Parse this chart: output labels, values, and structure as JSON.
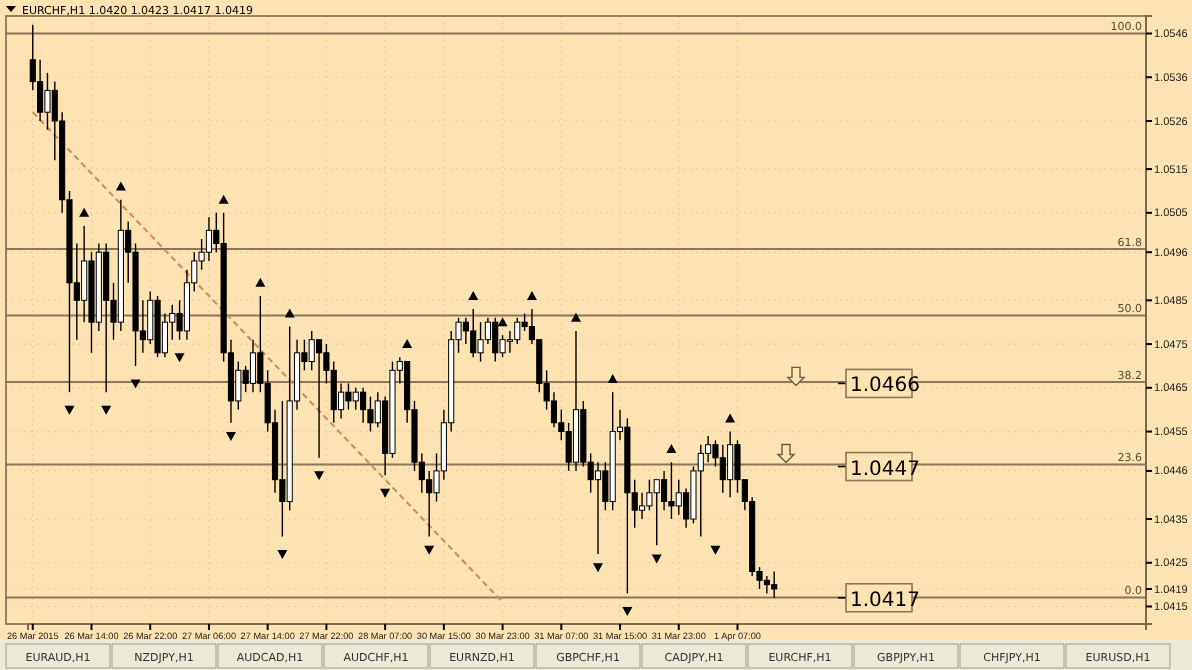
{
  "chart_data": {
    "type": "candlestick",
    "title": "EURCHF,H1 1.0420 1.0423 1.0417 1.0419",
    "categories": [
      "26 Mar 2015",
      null,
      null,
      null,
      null,
      null,
      null,
      null,
      "26 Mar 14:00",
      null,
      null,
      null,
      null,
      null,
      null,
      null,
      "26 Mar 22:00",
      null,
      null,
      null,
      null,
      null,
      null,
      null,
      "27 Mar 06:00",
      null,
      null,
      null,
      null,
      null,
      null,
      null,
      "27 Mar 14:00",
      null,
      null,
      null,
      null,
      null,
      null,
      null,
      "27 Mar 22:00",
      null,
      null,
      null,
      null,
      null,
      null,
      null,
      "28 Mar 07:00",
      null,
      null,
      null,
      null,
      null,
      null,
      null,
      "30 Mar 15:00",
      null,
      null,
      null,
      null,
      null,
      null,
      null,
      "30 Mar 23:00",
      null,
      null,
      null,
      null,
      null,
      null,
      null,
      "31 Mar 07:00",
      null,
      null,
      null,
      null,
      null,
      null,
      null,
      "31 Mar 15:00",
      null,
      null,
      null,
      null,
      null,
      null,
      null,
      "31 Mar 23:00",
      null,
      null,
      null,
      null,
      null,
      null,
      null,
      "1 Apr 07:00",
      null,
      null,
      null,
      null,
      null,
      null,
      null,
      null,
      null,
      null,
      null,
      null,
      null,
      null,
      null,
      null,
      null,
      null,
      null,
      null,
      null,
      null,
      null,
      null,
      null,
      null,
      null,
      null,
      null,
      null,
      null,
      null,
      null,
      null,
      null,
      null,
      null,
      null,
      null,
      null,
      null,
      null,
      null,
      null,
      null,
      null,
      null,
      null,
      null,
      null,
      null,
      null,
      null,
      null,
      null
    ],
    "ohlc": [
      [
        1.054,
        1.0548,
        1.0533,
        1.0535
      ],
      [
        1.0535,
        1.054,
        1.0526,
        1.0528
      ],
      [
        1.0528,
        1.0537,
        1.0524,
        1.0533
      ],
      [
        1.0533,
        1.0535,
        1.0517,
        1.0526
      ],
      [
        1.0526,
        1.0528,
        1.0505,
        1.0508
      ],
      [
        1.0508,
        1.051,
        1.0464,
        1.0489
      ],
      [
        1.0489,
        1.0498,
        1.0476,
        1.0485
      ],
      [
        1.0485,
        1.0502,
        1.048,
        1.0494
      ],
      [
        1.0494,
        1.0496,
        1.0473,
        1.048
      ],
      [
        1.048,
        1.0498,
        1.0478,
        1.0496
      ],
      [
        1.0496,
        1.0498,
        1.0464,
        1.0485
      ],
      [
        1.0485,
        1.0489,
        1.0476,
        1.048
      ],
      [
        1.048,
        1.0508,
        1.0478,
        1.0501
      ],
      [
        1.0501,
        1.0503,
        1.0489,
        1.0496
      ],
      [
        1.0496,
        1.0498,
        1.047,
        1.0478
      ],
      [
        1.0478,
        1.0485,
        1.0473,
        1.0476
      ],
      [
        1.0476,
        1.0487,
        1.0475,
        1.0485
      ],
      [
        1.0485,
        1.0486,
        1.0472,
        1.0473
      ],
      [
        1.0473,
        1.0482,
        1.0472,
        1.048
      ],
      [
        1.048,
        1.0484,
        1.0476,
        1.0482
      ],
      [
        1.0482,
        1.0485,
        1.0476,
        1.0478
      ],
      [
        1.0478,
        1.0492,
        1.0476,
        1.0489
      ],
      [
        1.0489,
        1.0496,
        1.0487,
        1.0494
      ],
      [
        1.0494,
        1.0499,
        1.0492,
        1.0496
      ],
      [
        1.0496,
        1.0504,
        1.0494,
        1.0501
      ],
      [
        1.0501,
        1.0505,
        1.0496,
        1.0498
      ],
      [
        1.0498,
        1.0505,
        1.0471,
        1.0473
      ],
      [
        1.0473,
        1.0476,
        1.0457,
        1.0462
      ],
      [
        1.0462,
        1.0471,
        1.046,
        1.0469
      ],
      [
        1.0469,
        1.047,
        1.0464,
        1.0466
      ],
      [
        1.0466,
        1.0476,
        1.0464,
        1.0473
      ],
      [
        1.0473,
        1.0486,
        1.0464,
        1.0466
      ],
      [
        1.0466,
        1.0469,
        1.0455,
        1.0457
      ],
      [
        1.0457,
        1.046,
        1.0441,
        1.0444
      ],
      [
        1.0444,
        1.0462,
        1.0431,
        1.0439
      ],
      [
        1.0439,
        1.0479,
        1.0437,
        1.0462
      ],
      [
        1.0462,
        1.0476,
        1.046,
        1.0473
      ],
      [
        1.0473,
        1.0476,
        1.0469,
        1.0471
      ],
      [
        1.0471,
        1.0478,
        1.0469,
        1.0476
      ],
      [
        1.0476,
        1.0476,
        1.0449,
        1.0473
      ],
      [
        1.0473,
        1.0475,
        1.0466,
        1.0469
      ],
      [
        1.0469,
        1.0471,
        1.0457,
        1.046
      ],
      [
        1.046,
        1.0466,
        1.0458,
        1.0464
      ],
      [
        1.0464,
        1.0466,
        1.046,
        1.0462
      ],
      [
        1.0462,
        1.0465,
        1.046,
        1.0464
      ],
      [
        1.0464,
        1.0465,
        1.0457,
        1.046
      ],
      [
        1.046,
        1.0463,
        1.0455,
        1.0457
      ],
      [
        1.0457,
        1.0464,
        1.0456,
        1.0462
      ],
      [
        1.0462,
        1.0463,
        1.0445,
        1.045
      ],
      [
        1.045,
        1.0471,
        1.0449,
        1.0469
      ],
      [
        1.0469,
        1.0472,
        1.0466,
        1.0471
      ],
      [
        1.0471,
        1.0471,
        1.0457,
        1.046
      ],
      [
        1.046,
        1.0462,
        1.0446,
        1.0448
      ],
      [
        1.0448,
        1.045,
        1.0441,
        1.0444
      ],
      [
        1.0444,
        1.0446,
        1.0431,
        1.0441
      ],
      [
        1.0441,
        1.045,
        1.0439,
        1.0446
      ],
      [
        1.0446,
        1.046,
        1.0444,
        1.0457
      ],
      [
        1.0457,
        1.0478,
        1.0455,
        1.0476
      ],
      [
        1.0476,
        1.0481,
        1.0473,
        1.048
      ],
      [
        1.048,
        1.0481,
        1.0475,
        1.0478
      ],
      [
        1.0478,
        1.0483,
        1.0472,
        1.0473
      ],
      [
        1.0473,
        1.048,
        1.0471,
        1.0476
      ],
      [
        1.0476,
        1.0481,
        1.0475,
        1.048
      ],
      [
        1.048,
        1.0481,
        1.0471,
        1.0473
      ],
      [
        1.0473,
        1.0477,
        1.0472,
        1.0476
      ],
      [
        1.0476,
        1.0478,
        1.0473,
        1.0476
      ],
      [
        1.0476,
        1.0481,
        1.0475,
        1.048
      ],
      [
        1.048,
        1.0482,
        1.0478,
        1.0479
      ],
      [
        1.0479,
        1.0483,
        1.0475,
        1.0476
      ],
      [
        1.0476,
        1.0476,
        1.0464,
        1.0466
      ],
      [
        1.0466,
        1.0469,
        1.046,
        1.0462
      ],
      [
        1.0462,
        1.0464,
        1.0456,
        1.0457
      ],
      [
        1.0457,
        1.046,
        1.0453,
        1.0455
      ],
      [
        1.0455,
        1.0457,
        1.0446,
        1.0448
      ],
      [
        1.0448,
        1.0478,
        1.0446,
        1.046
      ],
      [
        1.046,
        1.0462,
        1.0447,
        1.0448
      ],
      [
        1.0448,
        1.045,
        1.0441,
        1.0444
      ],
      [
        1.0444,
        1.0448,
        1.0427,
        1.0446
      ],
      [
        1.0446,
        1.0448,
        1.0437,
        1.0439
      ],
      [
        1.0439,
        1.0464,
        1.0437,
        1.0455
      ],
      [
        1.0455,
        1.046,
        1.0453,
        1.0456
      ],
      [
        1.0456,
        1.0458,
        1.0418,
        1.0441
      ],
      [
        1.0441,
        1.0444,
        1.0433,
        1.0437
      ],
      [
        1.0437,
        1.0441,
        1.0435,
        1.0438
      ],
      [
        1.0438,
        1.0444,
        1.0437,
        1.0441
      ],
      [
        1.0441,
        1.0444,
        1.0429,
        1.0444
      ],
      [
        1.0444,
        1.0446,
        1.0437,
        1.0439
      ],
      [
        1.0439,
        1.0448,
        1.0435,
        1.0438
      ],
      [
        1.0438,
        1.0444,
        1.0436,
        1.0441
      ],
      [
        1.0441,
        1.0442,
        1.0433,
        1.0435
      ],
      [
        1.0435,
        1.0447,
        1.0434,
        1.0446
      ],
      [
        1.0446,
        1.0452,
        1.0431,
        1.045
      ],
      [
        1.045,
        1.0454,
        1.0448,
        1.0452
      ],
      [
        1.0452,
        1.0453,
        1.0447,
        1.0449
      ],
      [
        1.0449,
        1.0452,
        1.0441,
        1.0444
      ],
      [
        1.0444,
        1.0455,
        1.044,
        1.0452
      ],
      [
        1.0452,
        1.0453,
        1.0441,
        1.0444
      ],
      [
        1.0444,
        1.0444,
        1.0437,
        1.0439
      ],
      [
        1.0439,
        1.044,
        1.0422,
        1.0423
      ],
      [
        1.0423,
        1.0424,
        1.0419,
        1.0421
      ],
      [
        1.0421,
        1.0422,
        1.0418,
        1.042
      ],
      [
        1.042,
        1.0423,
        1.0417,
        1.0419
      ],
      null,
      null,
      null,
      null,
      null,
      null,
      null,
      null,
      null,
      null,
      null,
      null,
      null,
      null,
      null,
      null,
      null,
      null,
      null,
      null,
      null,
      null,
      null,
      null,
      null,
      null,
      null,
      null,
      null,
      null,
      null,
      null,
      null,
      null,
      null,
      null,
      null,
      null,
      null,
      null,
      null,
      null,
      null,
      null,
      null,
      null,
      null,
      null,
      null,
      null
    ],
    "series": [
      {
        "type": "scatter",
        "marker": "triangle",
        "color": "#000000",
        "values": [
          null,
          null,
          null,
          null,
          null,
          null,
          null,
          1.0505,
          null,
          null,
          null,
          null,
          1.0511,
          null,
          null,
          null,
          null,
          null,
          null,
          null,
          null,
          null,
          null,
          null,
          null,
          null,
          1.0508,
          null,
          null,
          null,
          null,
          1.0489,
          null,
          null,
          null,
          1.0482,
          null,
          null,
          null,
          null,
          null,
          null,
          null,
          null,
          null,
          null,
          null,
          null,
          null,
          null,
          null,
          1.0475,
          null,
          null,
          null,
          null,
          null,
          null,
          null,
          null,
          1.0486,
          null,
          null,
          null,
          1.048,
          null,
          null,
          null,
          1.0486,
          null,
          null,
          null,
          null,
          null,
          1.0481,
          null,
          null,
          null,
          null,
          1.0467,
          null,
          null,
          null,
          null,
          null,
          null,
          null,
          1.0451,
          null,
          null,
          null,
          null,
          null,
          null,
          null,
          1.0458,
          null,
          null,
          null,
          null,
          null,
          null,
          null,
          null,
          null,
          null,
          null,
          null,
          null,
          null,
          null,
          null,
          null,
          null,
          null,
          null,
          null,
          null,
          null,
          null,
          null,
          null,
          null,
          null,
          null,
          null,
          null,
          null,
          null,
          null,
          null,
          null,
          null,
          null,
          null,
          null,
          null,
          null,
          null,
          null,
          null,
          null,
          null,
          null,
          null,
          null,
          null,
          null,
          null,
          null,
          null,
          null
        ]
      },
      {
        "type": "scatter",
        "marker": "triangle",
        "color": "#000000",
        "values": [
          null,
          null,
          null,
          null,
          null,
          1.046,
          null,
          null,
          null,
          null,
          1.046,
          null,
          null,
          null,
          1.0466,
          null,
          null,
          null,
          null,
          null,
          1.0472,
          null,
          null,
          null,
          null,
          null,
          null,
          1.0454,
          null,
          null,
          null,
          null,
          null,
          null,
          1.0427,
          null,
          null,
          null,
          null,
          1.0445,
          null,
          null,
          null,
          null,
          null,
          null,
          null,
          null,
          1.0441,
          null,
          null,
          null,
          null,
          null,
          1.0428,
          null,
          null,
          null,
          null,
          null,
          null,
          null,
          null,
          null,
          null,
          null,
          null,
          null,
          null,
          null,
          null,
          null,
          null,
          null,
          null,
          null,
          null,
          1.0424,
          null,
          null,
          null,
          1.0414,
          null,
          null,
          null,
          1.0426,
          null,
          null,
          null,
          null,
          null,
          null,
          null,
          1.0428,
          null,
          null,
          null,
          null,
          null,
          null,
          null,
          null,
          null,
          null,
          null,
          null,
          null,
          null,
          null,
          null,
          null,
          null,
          null,
          null,
          null,
          null,
          null,
          null,
          null,
          null,
          null,
          null,
          null,
          null,
          null,
          null,
          null,
          null,
          null,
          null,
          null,
          null,
          null,
          null,
          null,
          null,
          null,
          null,
          null,
          null,
          null,
          null,
          null,
          null,
          null,
          null,
          null,
          null,
          null,
          null,
          null,
          null
        ]
      },
      {
        "type": "line",
        "color": "#d4875a",
        "values": [
          1.0528,
          null,
          null,
          null,
          null,
          null,
          null,
          null,
          null,
          null,
          null,
          null,
          null,
          null,
          null,
          null,
          null,
          null,
          null,
          null,
          null,
          null,
          null,
          null,
          null,
          null,
          null,
          null,
          null,
          null,
          null,
          null,
          null,
          null,
          null,
          null,
          null,
          null,
          null,
          null,
          null,
          null,
          null,
          null,
          null,
          null,
          null,
          null,
          null,
          null,
          null,
          null,
          null,
          null,
          null,
          null,
          null,
          null,
          null,
          null,
          null,
          null,
          null,
          null,
          1.0416,
          null,
          null,
          null,
          null,
          null,
          null,
          null,
          null,
          null,
          null,
          null,
          null,
          null,
          null,
          null,
          null,
          null,
          null,
          null,
          null,
          null,
          null,
          null,
          null,
          null,
          null,
          null,
          null,
          null,
          null,
          null,
          null,
          null,
          null,
          null,
          null,
          null,
          null,
          null,
          null,
          null,
          null,
          null,
          null,
          null,
          null,
          null,
          null,
          null,
          null,
          null,
          null,
          null,
          null,
          null,
          null,
          null,
          null,
          null,
          null,
          null,
          null,
          null,
          null,
          null,
          null,
          null,
          null,
          null,
          null,
          null,
          null,
          null,
          null,
          null,
          null,
          null,
          null,
          null,
          null,
          null,
          null,
          null,
          null,
          null,
          null,
          null
        ]
      }
    ],
    "line_style": "dashed",
    "grid": true,
    "ylim": [
      1.0411,
      1.055
    ],
    "yticks": [
      1.0546,
      1.0536,
      1.0526,
      1.0515,
      1.0505,
      1.0496,
      1.0485,
      1.0475,
      1.0465,
      1.0455,
      1.0446,
      1.0435,
      1.0425,
      1.0419,
      1.0415
    ],
    "y2lim": [
      -4.7,
      103.1
    ],
    "ref_lines": [
      {
        "axis": "y2",
        "value": 100,
        "label": "100.0",
        "color": "#8a7658"
      },
      {
        "axis": "y2",
        "value": 61.8,
        "label": "61.8",
        "color": "#8a7658"
      },
      {
        "axis": "y2",
        "value": 50,
        "label": "50.0",
        "color": "#8a7658"
      },
      {
        "axis": "y2",
        "value": 38.2,
        "label": "38.2",
        "color": "#8a7658"
      },
      {
        "axis": "y2",
        "value": 23.6,
        "label": "23.6",
        "color": "#8a7658"
      },
      {
        "axis": "y2",
        "value": 0,
        "label": "0.0",
        "color": "#8a7658"
      }
    ],
    "annotations": [
      {
        "text": "1.0466",
        "y": 1.0466
      },
      {
        "text": "1.0447",
        "y": 1.0447
      },
      {
        "text": "1.0417",
        "y": 1.0417
      },
      "EURAUD,H1",
      "NZDJPY,H1",
      "AUDCAD,H1",
      "AUDCHF,H1",
      "EURNZD,H1",
      "GBPCHF,H1",
      "CADJPY,H1",
      "EURCHF,H1",
      "GBPJPY,H1",
      "CHFJPY,H1",
      "EURUSD,H1"
    ]
  }
}
